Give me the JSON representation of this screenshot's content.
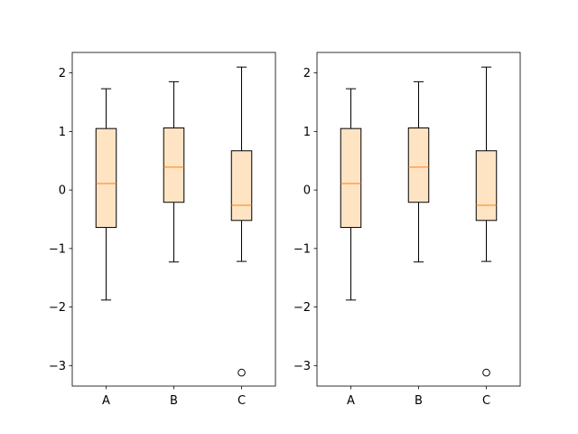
{
  "chart_data": [
    {
      "type": "box",
      "title": "",
      "xlabel": "",
      "ylabel": "",
      "ylim": [
        -3.35,
        2.35
      ],
      "yticks": [
        -3,
        -2,
        -1,
        0,
        1,
        2
      ],
      "ytick_labels": [
        "−3",
        "−2",
        "−1",
        "0",
        "1",
        "2"
      ],
      "categories": [
        "A",
        "B",
        "C"
      ],
      "boxes": [
        {
          "name": "A",
          "whisker_low": -1.88,
          "q1": -0.64,
          "median": 0.11,
          "q3": 1.05,
          "whisker_high": 1.73,
          "outliers": []
        },
        {
          "name": "B",
          "whisker_low": -1.23,
          "q1": -0.21,
          "median": 0.39,
          "q3": 1.06,
          "whisker_high": 1.85,
          "outliers": []
        },
        {
          "name": "C",
          "whisker_low": -1.22,
          "q1": -0.52,
          "median": -0.26,
          "q3": 0.67,
          "whisker_high": 2.1,
          "outliers": [
            -3.12
          ]
        }
      ],
      "colors": {
        "box_fill": "#ffe4c4",
        "median": "#ff7f0e",
        "line": "#000000"
      }
    },
    {
      "type": "box",
      "title": "",
      "xlabel": "",
      "ylabel": "",
      "ylim": [
        -3.35,
        2.35
      ],
      "yticks": [
        -3,
        -2,
        -1,
        0,
        1,
        2
      ],
      "ytick_labels": [
        "−3",
        "−2",
        "−1",
        "0",
        "1",
        "2"
      ],
      "categories": [
        "A",
        "B",
        "C"
      ],
      "boxes": [
        {
          "name": "A",
          "whisker_low": -1.88,
          "q1": -0.64,
          "median": 0.11,
          "q3": 1.05,
          "whisker_high": 1.73,
          "outliers": []
        },
        {
          "name": "B",
          "whisker_low": -1.23,
          "q1": -0.21,
          "median": 0.39,
          "q3": 1.06,
          "whisker_high": 1.85,
          "outliers": []
        },
        {
          "name": "C",
          "whisker_low": -1.22,
          "q1": -0.52,
          "median": -0.26,
          "q3": 0.67,
          "whisker_high": 2.1,
          "outliers": [
            -3.12
          ]
        }
      ],
      "colors": {
        "box_fill": "#ffe4c4",
        "median": "#ff7f0e",
        "line": "#000000"
      }
    }
  ]
}
